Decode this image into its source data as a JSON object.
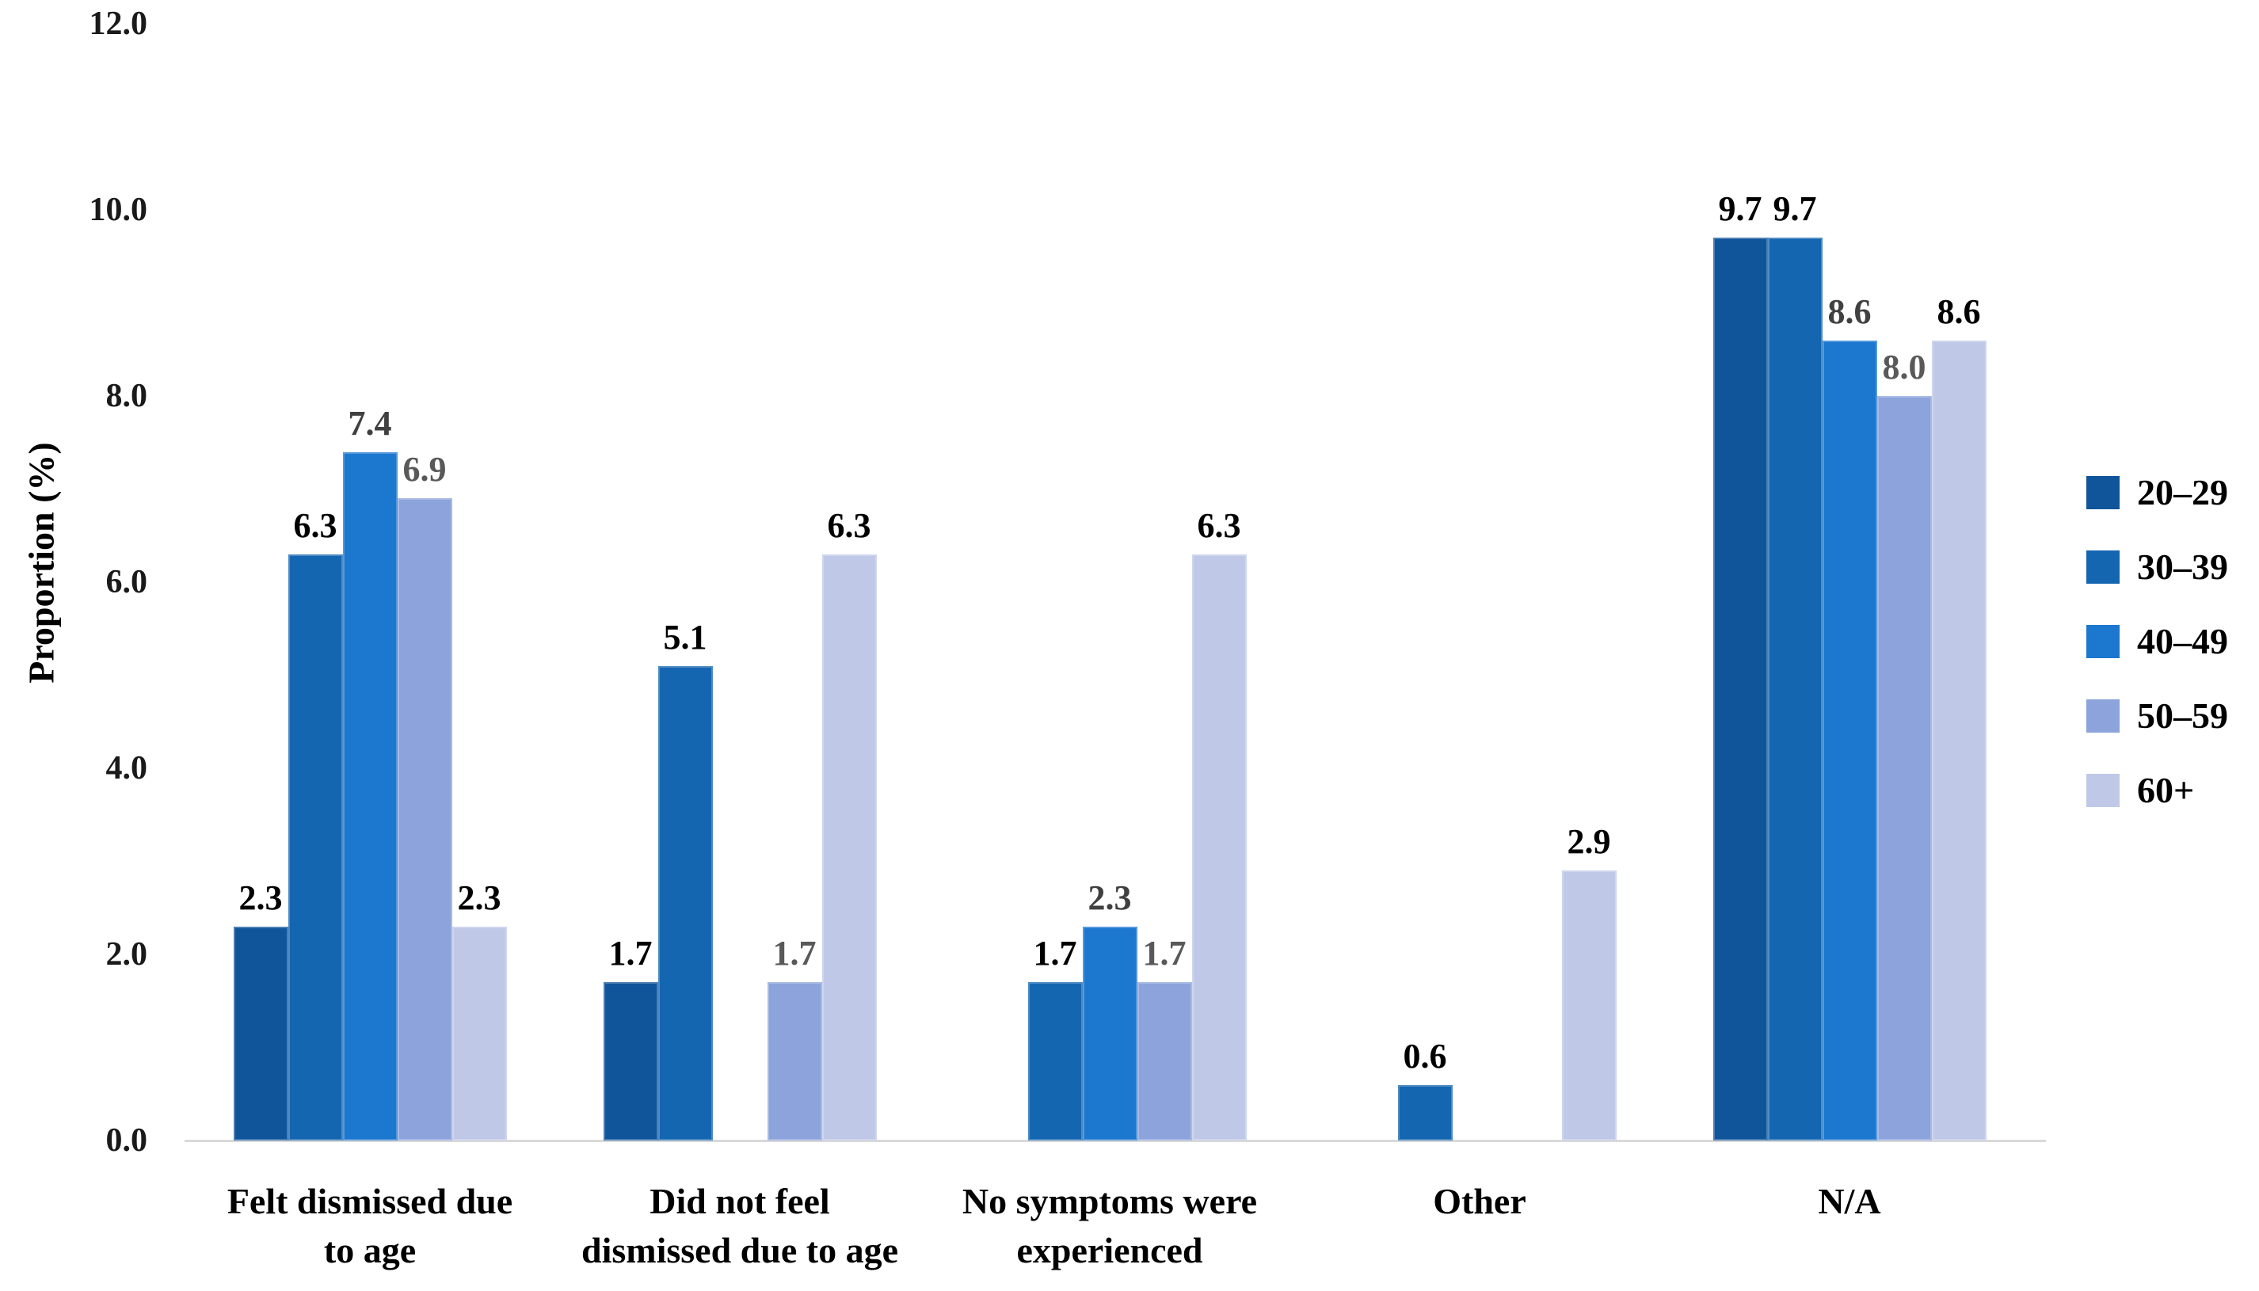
{
  "chart_data": {
    "type": "bar",
    "title": "",
    "ylabel": "Proportion (%)",
    "xlabel": "",
    "ylim": [
      0,
      12
    ],
    "ytick_step": 2,
    "ytick_labels": [
      "0.0",
      "2.0",
      "4.0",
      "6.0",
      "8.0",
      "10.0",
      "12.0"
    ],
    "grid": false,
    "legend_position": "right",
    "axis_line_color": "#d9d9d9",
    "categories": [
      "Felt dismissed due to age",
      "Did not feel dismissed due to age",
      "No symptoms were experienced",
      "Other",
      "N/A"
    ],
    "category_label_lines": [
      [
        "Felt dismissed due",
        "to age"
      ],
      [
        "Did not feel",
        "dismissed due to age"
      ],
      [
        "No symptoms were",
        "experienced"
      ],
      [
        "Other"
      ],
      [
        "N/A"
      ]
    ],
    "series": [
      {
        "name": "20–29",
        "color": "#10559a",
        "label_color": "#000000",
        "values": [
          2.3,
          1.7,
          0,
          0,
          9.7
        ]
      },
      {
        "name": "30–39",
        "color": "#1566b1",
        "label_color": "#000000",
        "values": [
          6.3,
          5.1,
          1.7,
          0.6,
          9.7
        ]
      },
      {
        "name": "40–49",
        "color": "#1c77cf",
        "label_color": "#404040",
        "values": [
          7.4,
          0,
          2.3,
          0,
          8.6
        ]
      },
      {
        "name": "50–59",
        "color": "#8ca3db",
        "label_color": "#595959",
        "values": [
          6.9,
          1.7,
          1.7,
          0,
          8.0
        ]
      },
      {
        "name": "60+",
        "color": "#bfc9e7",
        "label_color": "#000000",
        "values": [
          2.3,
          6.3,
          6.3,
          2.9,
          8.6
        ]
      }
    ],
    "data_label_decimals": 1
  }
}
